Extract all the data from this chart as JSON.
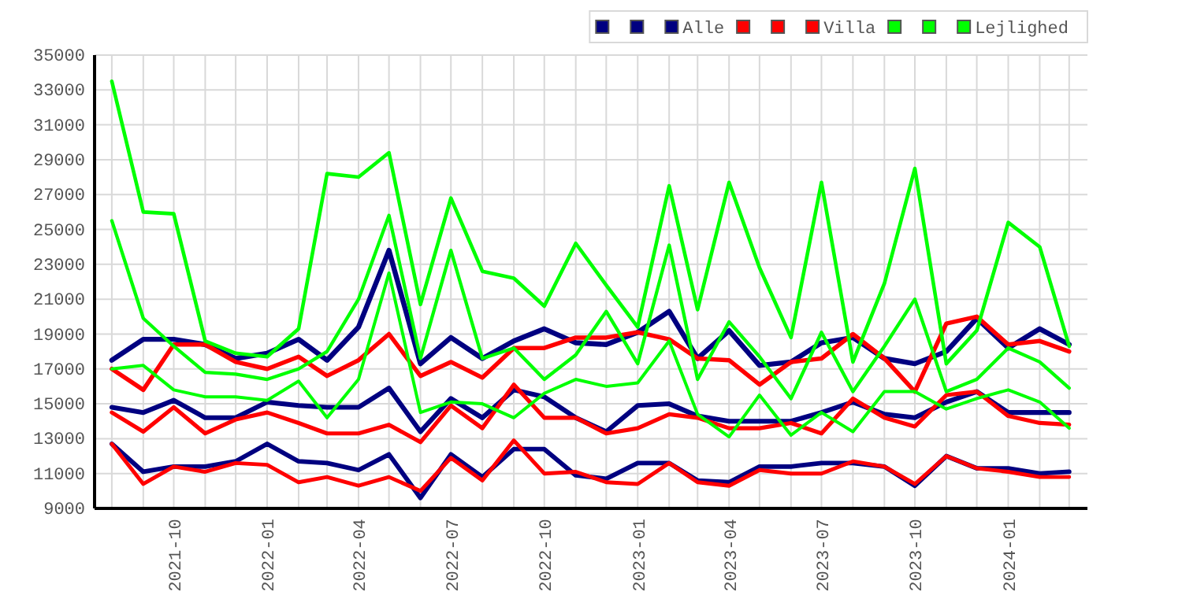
{
  "chart_data": {
    "type": "line",
    "x": [
      "2021-08",
      "2021-09",
      "2021-10",
      "2021-11",
      "2021-12",
      "2022-01",
      "2022-02",
      "2022-03",
      "2022-04",
      "2022-05",
      "2022-06",
      "2022-07",
      "2022-08",
      "2022-09",
      "2022-10",
      "2022-11",
      "2022-12",
      "2023-01",
      "2023-02",
      "2023-03",
      "2023-04",
      "2023-05",
      "2023-06",
      "2023-07",
      "2023-08",
      "2023-09",
      "2023-10",
      "2023-11",
      "2023-12",
      "2024-01",
      "2024-02",
      "2024-03"
    ],
    "series": [
      {
        "color": "#000080",
        "values": [
          17500,
          18700,
          18700,
          18400,
          17600,
          17900,
          18700,
          17500,
          19400,
          23800,
          17300,
          18800,
          17600,
          18600,
          19300,
          18500,
          18400,
          19100,
          20300,
          17600,
          19200,
          17200,
          17400,
          18500,
          18800,
          17600,
          17300,
          18000,
          19900,
          18200,
          19300,
          18400
        ]
      },
      {
        "color": "#000080",
        "values": [
          14800,
          14500,
          15200,
          14200,
          14200,
          15100,
          14900,
          14800,
          14800,
          15900,
          13400,
          15300,
          14200,
          15800,
          15400,
          14200,
          13400,
          14900,
          15000,
          14300,
          14000,
          14000,
          14000,
          14500,
          15100,
          14400,
          14200,
          15100,
          15700,
          14500,
          14500,
          14500
        ]
      },
      {
        "name": "Alle",
        "color": "#000080",
        "values": [
          12700,
          11100,
          11400,
          11400,
          11700,
          12700,
          11700,
          11600,
          11200,
          12100,
          9600,
          12100,
          10800,
          12400,
          12400,
          10900,
          10700,
          11600,
          11600,
          10600,
          10500,
          11400,
          11400,
          11600,
          11600,
          11400,
          10300,
          12000,
          11300,
          11300,
          11000,
          11100
        ]
      },
      {
        "color": "#ff0000",
        "values": [
          17000,
          15800,
          18400,
          18400,
          17400,
          17000,
          17700,
          16600,
          17500,
          19000,
          16600,
          17400,
          16500,
          18200,
          18200,
          18800,
          18800,
          19100,
          18700,
          17600,
          17500,
          16100,
          17400,
          17600,
          19000,
          17600,
          15700,
          19600,
          20000,
          18400,
          18600,
          18000
        ]
      },
      {
        "color": "#ff0000",
        "values": [
          14500,
          13400,
          14800,
          13300,
          14100,
          14500,
          13900,
          13300,
          13300,
          13800,
          12800,
          14900,
          13600,
          16100,
          14200,
          14200,
          13300,
          13600,
          14400,
          14200,
          13600,
          13600,
          13900,
          13300,
          15300,
          14200,
          13700,
          15500,
          15700,
          14300,
          13900,
          13800
        ]
      },
      {
        "name": "Villa",
        "color": "#ff0000",
        "values": [
          12700,
          10400,
          11400,
          11100,
          11600,
          11500,
          10500,
          10800,
          10300,
          10800,
          10000,
          11900,
          10600,
          12900,
          11000,
          11100,
          10500,
          10400,
          11600,
          10500,
          10300,
          11200,
          11000,
          11000,
          11700,
          11400,
          10400,
          12000,
          11300,
          11100,
          10800,
          10800
        ]
      },
      {
        "color": "#00ff00",
        "values": [
          33500,
          26000,
          25900,
          18600,
          17900,
          17700,
          19300,
          28200,
          28000,
          29400,
          20700,
          26800,
          22600,
          22200,
          20600,
          24200,
          21800,
          19400,
          27500,
          20400,
          27700,
          22800,
          18800,
          27700,
          17400,
          21900,
          28500,
          17300,
          19200,
          25400,
          24000,
          18300
        ]
      },
      {
        "color": "#00ff00",
        "values": [
          25500,
          19900,
          18300,
          16800,
          16700,
          16400,
          17000,
          18000,
          21000,
          25800,
          17600,
          23800,
          17600,
          18200,
          16400,
          17800,
          20300,
          17300,
          24100,
          16400,
          19700,
          17700,
          15300,
          19100,
          15700,
          18300,
          21000,
          15700,
          16400,
          18200,
          17400,
          15900
        ]
      },
      {
        "name": "Lejlighed",
        "color": "#00ff00",
        "values": [
          17000,
          17200,
          15800,
          15400,
          15400,
          15200,
          16300,
          14200,
          16400,
          22500,
          14500,
          15100,
          15000,
          14200,
          15600,
          16400,
          16000,
          16200,
          18600,
          14400,
          13100,
          15500,
          13200,
          14500,
          13400,
          15700,
          15700,
          14700,
          15300,
          15800,
          15100,
          13600
        ]
      }
    ],
    "xlim": [
      "2021-07-15",
      "2024-03-19"
    ],
    "xticks": [
      {
        "value": "2021-08",
        "label": null
      },
      {
        "value": "2021-09",
        "label": null
      },
      "2021-10",
      {
        "value": "2021-11",
        "label": null
      },
      {
        "value": "2021-12",
        "label": null
      },
      "2022-01",
      {
        "value": "2022-02",
        "label": null
      },
      {
        "value": "2022-03",
        "label": null
      },
      "2022-04",
      {
        "value": "2022-05",
        "label": null
      },
      {
        "value": "2022-06",
        "label": null
      },
      "2022-07",
      {
        "value": "2022-08",
        "label": null
      },
      {
        "value": "2022-09",
        "label": null
      },
      "2022-10",
      {
        "value": "2022-11",
        "label": null
      },
      {
        "value": "2022-12",
        "label": null
      },
      "2023-01",
      {
        "value": "2023-02",
        "label": null
      },
      {
        "value": "2023-03",
        "label": null
      },
      "2023-04",
      {
        "value": "2023-05",
        "label": null
      },
      {
        "value": "2023-06",
        "label": null
      },
      "2023-07",
      {
        "value": "2023-08",
        "label": null
      },
      {
        "value": "2023-09",
        "label": null
      },
      "2023-10",
      {
        "value": "2023-11",
        "label": null
      },
      {
        "value": "2023-12",
        "label": null
      },
      "2024-01",
      {
        "value": "2024-02",
        "label": null
      },
      {
        "value": "2024-03",
        "label": null
      }
    ],
    "ylim": [
      9000,
      35000
    ],
    "yticks": [
      9000,
      11000,
      13000,
      15000,
      17000,
      19000,
      21000,
      23000,
      25000,
      27000,
      29000,
      31000,
      33000,
      35000
    ],
    "grid": true,
    "legend": "top right",
    "marker": "none",
    "line_style": "solid"
  }
}
